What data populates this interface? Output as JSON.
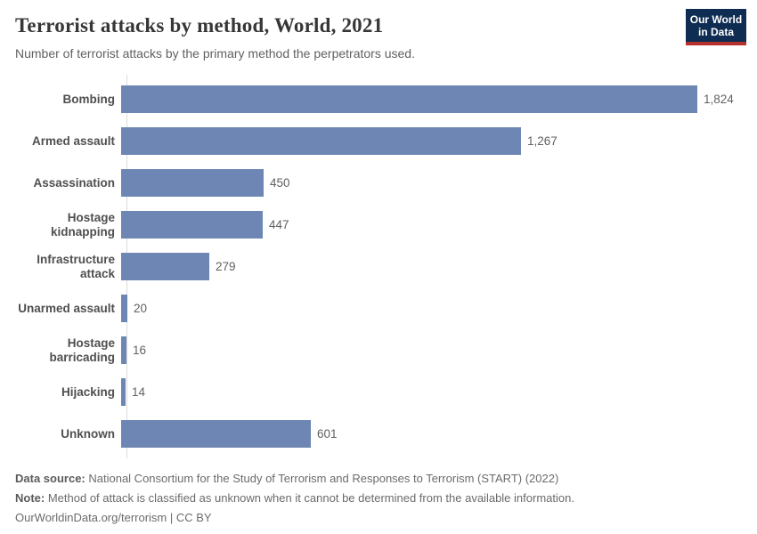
{
  "header": {
    "title": "Terrorist attacks by method, World, 2021",
    "subtitle": "Number of terrorist attacks by the primary method the perpetrators used.",
    "logo": {
      "line1": "Our World",
      "line2": "in Data"
    }
  },
  "chart_data": {
    "type": "bar",
    "orientation": "horizontal",
    "title": "Terrorist attacks by method, World, 2021",
    "subtitle": "Number of terrorist attacks by the primary method the perpetrators used.",
    "categories": [
      "Bombing",
      "Armed assault",
      "Assassination",
      "Hostage kidnapping",
      "Infrastructure attack",
      "Unarmed assault",
      "Hostage barricading",
      "Hijacking",
      "Unknown"
    ],
    "values": [
      1824,
      1267,
      450,
      447,
      279,
      20,
      16,
      14,
      601
    ],
    "value_labels": [
      "1,824",
      "1,267",
      "450",
      "447",
      "279",
      "20",
      "16",
      "14",
      "601"
    ],
    "xlim": [
      0,
      1824
    ],
    "grid": false,
    "legend": "none",
    "bar_color": "#6d86b3"
  },
  "footer": {
    "data_source_label": "Data source:",
    "data_source_text": "National Consortium for the Study of Terrorism and Responses to Terrorism (START) (2022)",
    "note_label": "Note:",
    "note_text": "Method of attack is classified as unknown when it cannot be determined from the available information.",
    "link_line": "OurWorldinData.org/terrorism | CC BY"
  },
  "colors": {
    "bar": "#6d86b3",
    "axis_line": "#dcdcdc",
    "title_text": "#373737",
    "subtitle_text": "#616161",
    "category_label": "#4f4f4f",
    "value_label": "#616161",
    "footer_text": "#6b6b6b",
    "logo_background": "#0f2d52",
    "logo_underline": "#b5312b"
  }
}
